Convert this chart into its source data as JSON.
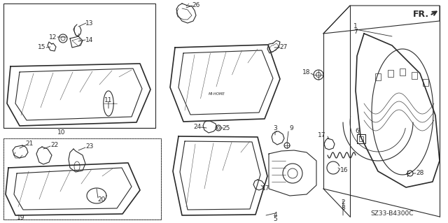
{
  "bg_color": "#ffffff",
  "line_color": "#2a2a2a",
  "diagram_code": "SZ33-B4300C",
  "figsize": [
    6.4,
    3.19
  ],
  "dpi": 100
}
